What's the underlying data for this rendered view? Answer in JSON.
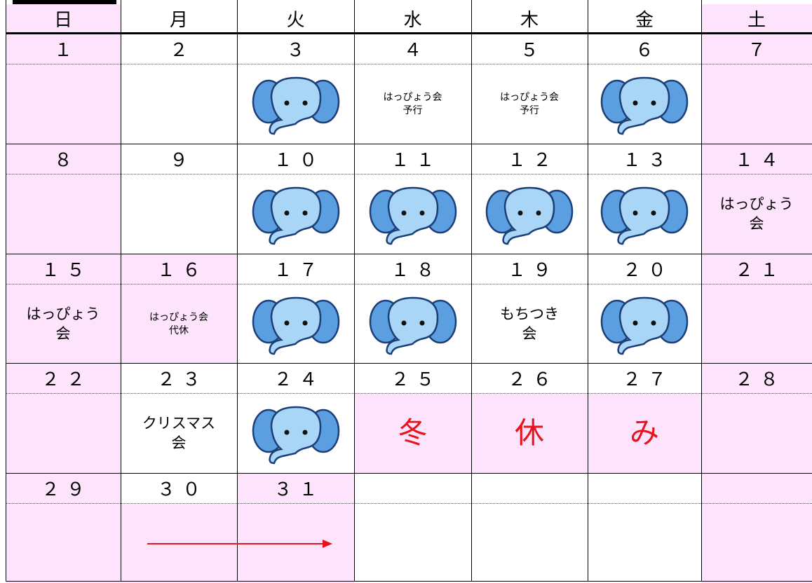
{
  "weekdays": [
    "日",
    "月",
    "火",
    "水",
    "木",
    "金",
    "土"
  ],
  "weeks": [
    [
      {
        "date": "１"
      },
      {
        "date": "２"
      },
      {
        "date": "３"
      },
      {
        "date": "４",
        "note": [
          "はっぴょう会",
          "予行"
        ]
      },
      {
        "date": "５",
        "note": [
          "はっぴょう会",
          "予行"
        ]
      },
      {
        "date": "６"
      },
      {
        "date": "７"
      }
    ],
    [
      {
        "date": "８"
      },
      {
        "date": "９"
      },
      {
        "date": "１０"
      },
      {
        "date": "１１"
      },
      {
        "date": "１２"
      },
      {
        "date": "１３"
      },
      {
        "date": "１４",
        "note": [
          "はっぴょう",
          "会"
        ]
      }
    ],
    [
      {
        "date": "１５",
        "note": [
          "はっぴょう",
          "会"
        ]
      },
      {
        "date": "１６",
        "note": [
          "はっぴょう会",
          "代休"
        ]
      },
      {
        "date": "１７"
      },
      {
        "date": "１８"
      },
      {
        "date": "１９",
        "note": [
          "もちつき",
          "会"
        ]
      },
      {
        "date": "２０"
      },
      {
        "date": "２１"
      }
    ],
    [
      {
        "date": "２２"
      },
      {
        "date": "２３",
        "note": [
          "クリスマス",
          "会"
        ]
      },
      {
        "date": "２４"
      },
      {
        "date": "２５",
        "note": [
          "冬"
        ]
      },
      {
        "date": "２６",
        "note": [
          "休"
        ]
      },
      {
        "date": "２７",
        "note": [
          "み"
        ]
      },
      {
        "date": "２８"
      }
    ],
    [
      {
        "date": "２９"
      },
      {
        "date": "３０"
      },
      {
        "date": "３１"
      }
    ]
  ]
}
